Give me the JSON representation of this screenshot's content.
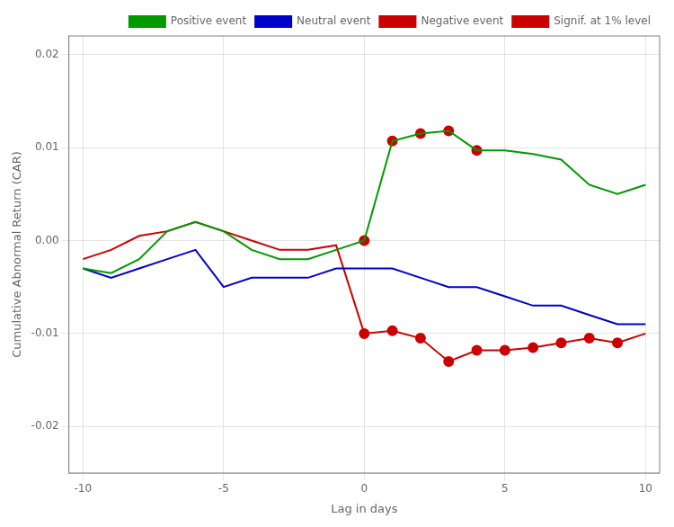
{
  "chart_data": {
    "type": "line",
    "xlabel": "Lag in days",
    "ylabel": "Cumulative Abnormal Return (CAR)",
    "x": [
      -10,
      -9,
      -8,
      -7,
      -6,
      -5,
      -4,
      -3,
      -2,
      -1,
      0,
      1,
      2,
      3,
      4,
      5,
      6,
      7,
      8,
      9,
      10
    ],
    "series": [
      {
        "name": "Positive event",
        "color": "#009900",
        "values": [
          -0.003,
          -0.0035,
          -0.002,
          0.001,
          0.002,
          0.001,
          -0.001,
          -0.002,
          -0.002,
          -0.001,
          0.0,
          0.0107,
          0.0115,
          0.0118,
          0.0097,
          0.0097,
          0.0093,
          0.0087,
          0.006,
          0.005,
          0.006
        ]
      },
      {
        "name": "Neutral event",
        "color": "#0000cc",
        "values": [
          -0.003,
          -0.004,
          -0.003,
          -0.002,
          -0.001,
          -0.005,
          -0.004,
          -0.004,
          -0.004,
          -0.003,
          -0.003,
          -0.003,
          -0.004,
          -0.005,
          -0.005,
          -0.006,
          -0.007,
          -0.007,
          -0.008,
          -0.009,
          -0.009
        ]
      },
      {
        "name": "Negative event",
        "color": "#cc0000",
        "values": [
          -0.002,
          -0.001,
          0.0005,
          0.001,
          0.002,
          0.001,
          0.0,
          -0.001,
          -0.001,
          -0.0005,
          -0.01,
          -0.0097,
          -0.0105,
          -0.013,
          -0.0118,
          -0.0118,
          -0.0115,
          -0.011,
          -0.0105,
          -0.011,
          -0.01
        ]
      },
      {
        "name": "Signif. at 1% level",
        "type": "scatter",
        "marker": "circle",
        "color": "#cc0000",
        "x": [
          0,
          1,
          2,
          3,
          4,
          0,
          1,
          2,
          3,
          4,
          5,
          6,
          7,
          8,
          9
        ],
        "values": [
          0.0,
          0.0107,
          0.0115,
          0.0118,
          0.0097,
          -0.01,
          -0.0097,
          -0.0105,
          -0.013,
          -0.0118,
          -0.0118,
          -0.0115,
          -0.011,
          -0.0105,
          -0.011
        ]
      }
    ],
    "xlim": [
      -10.5,
      10.5
    ],
    "xticks": [
      -10,
      -5,
      0,
      5,
      10
    ],
    "ylim": [
      -0.025,
      0.022
    ],
    "yticks": [
      -0.02,
      -0.01,
      {
        "value": 0,
        "label": "0.00"
      },
      0.01,
      0.02
    ],
    "grid": true,
    "legend": "upper right"
  }
}
